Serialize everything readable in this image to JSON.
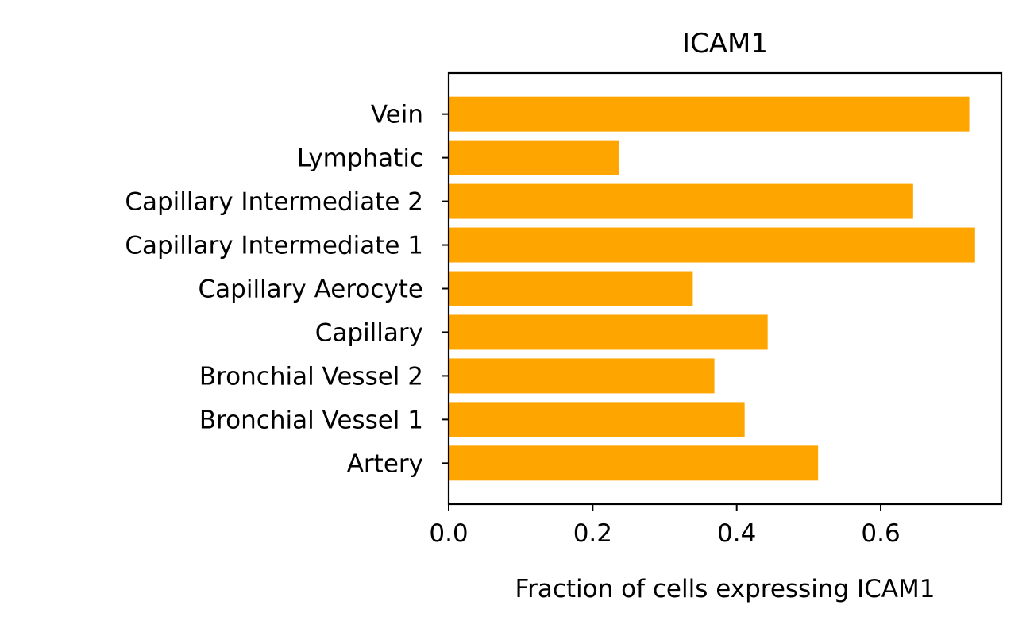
{
  "chart_data": {
    "type": "bar",
    "orientation": "horizontal",
    "title": "ICAM1",
    "xlabel": "Fraction of cells expressing ICAM1",
    "ylabel": "",
    "categories": [
      "Artery",
      "Bronchial Vessel 1",
      "Bronchial Vessel 2",
      "Capillary",
      "Capillary Aerocyte",
      "Capillary Intermediate 1",
      "Capillary Intermediate 2",
      "Lymphatic",
      "Vein"
    ],
    "values": [
      0.513,
      0.411,
      0.369,
      0.443,
      0.339,
      0.731,
      0.645,
      0.236,
      0.723
    ],
    "xlim": [
      0,
      0.7676
    ],
    "xticks": [
      0.0,
      0.2,
      0.4,
      0.6
    ],
    "xtick_labels": [
      "0.0",
      "0.2",
      "0.4",
      "0.6"
    ],
    "bar_color": "#ffa500",
    "grid": false,
    "legend": "none"
  }
}
